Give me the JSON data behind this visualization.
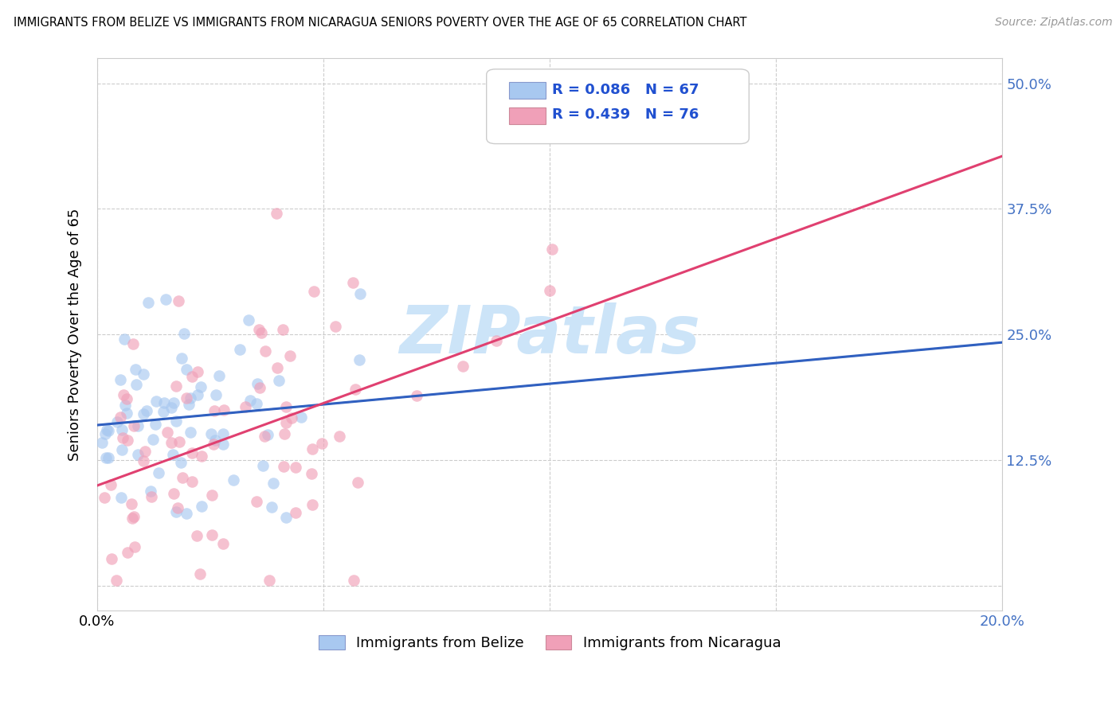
{
  "title": "IMMIGRANTS FROM BELIZE VS IMMIGRANTS FROM NICARAGUA SENIORS POVERTY OVER THE AGE OF 65 CORRELATION CHART",
  "source": "Source: ZipAtlas.com",
  "ylabel": "Seniors Poverty Over the Age of 65",
  "xlim": [
    0.0,
    0.2
  ],
  "ylim": [
    -0.025,
    0.525
  ],
  "yticks": [
    0.0,
    0.125,
    0.25,
    0.375,
    0.5
  ],
  "ytick_labels_right": [
    "",
    "12.5%",
    "25.0%",
    "37.5%",
    "50.0%"
  ],
  "xticks": [
    0.0,
    0.05,
    0.1,
    0.15,
    0.2
  ],
  "xtick_labels": [
    "0.0%",
    "",
    "",
    "",
    "20.0%"
  ],
  "belize_R": 0.086,
  "belize_N": 67,
  "nicaragua_R": 0.439,
  "nicaragua_N": 76,
  "belize_scatter_color": "#a8c8f0",
  "nicaragua_scatter_color": "#f0a0b8",
  "belize_line_color": "#3060c0",
  "nicaragua_line_color": "#e04070",
  "legend_color": "#2050d0",
  "axis_label_color": "#4472c4",
  "grid_color": "#cccccc",
  "watermark_color": "#cce4f8",
  "watermark_text": "ZIPatlas",
  "background_color": "#ffffff"
}
